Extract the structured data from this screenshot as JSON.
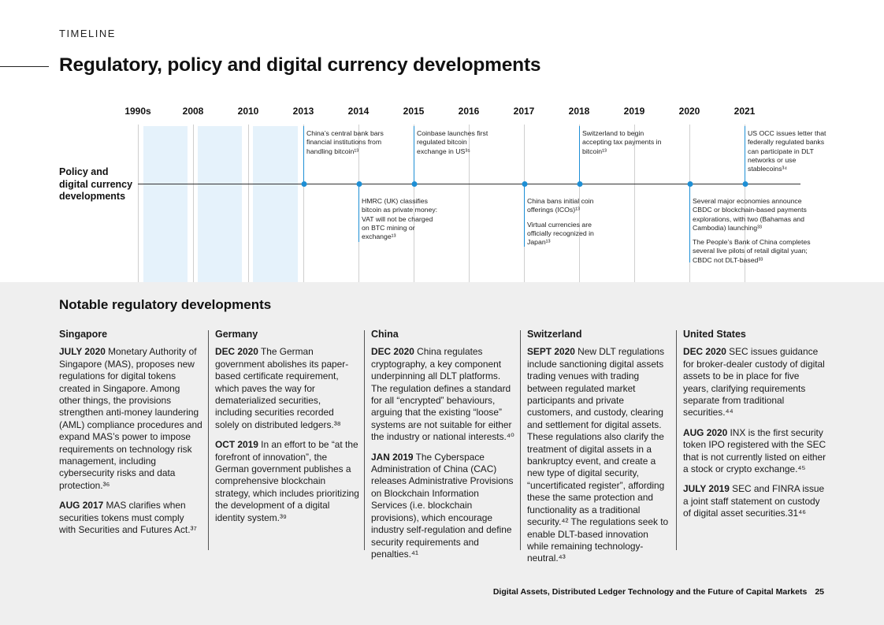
{
  "header": {
    "section_label": "TIMELINE",
    "title": "Regulatory, policy and digital currency developments"
  },
  "timeline": {
    "row_label": "Policy and digital currency developments",
    "years": [
      "1990s",
      "2008",
      "2010",
      "2013",
      "2014",
      "2015",
      "2016",
      "2017",
      "2018",
      "2019",
      "2020",
      "2021"
    ],
    "events_above": [
      {
        "year": "2013",
        "text": "China’s central bank bars financial institutions from handling bitcoin¹³"
      },
      {
        "year": "2015",
        "text": "Coinbase launches first regulated bitcoin exchange in US³⁵"
      },
      {
        "year": "2018",
        "text": "Switzerland to begin accepting tax payments in bitcoin¹³"
      },
      {
        "year": "2021",
        "text": "US OCC issues letter that federally regulated banks can participate in DLT networks or use stablecoins³⁴"
      }
    ],
    "events_below": [
      {
        "year": "2014",
        "text": "HMRC (UK) classifies bitcoin as private money: VAT will not be charged on BTC mining or exchange¹³"
      },
      {
        "year": "2017",
        "text": "China bans initial coin offerings (ICOs)¹³"
      },
      {
        "year": "2017",
        "text": "Virtual currencies are officially recognized in Japan¹³"
      },
      {
        "year": "2020",
        "text": "Several major economies announce CBDC or blockchain-based payments explorations, with two (Bahamas and Cambodia) launching³³"
      },
      {
        "year": "2020",
        "text": "The People’s Bank of China completes several live pilots of retail digital yuan; CBDC not DLT-based³³"
      }
    ]
  },
  "notable": {
    "heading": "Notable regulatory developments",
    "columns": [
      {
        "region": "Singapore",
        "entries": [
          {
            "date": "JULY 2020",
            "text": " Monetary Authority of Singapore (MAS), proposes new regulations for digital tokens created in Singapore. Among other things, the provisions strengthen anti-money laundering (AML) compliance procedures and expand MAS’s power to impose requirements on technology risk management, including cybersecurity risks and data protection.³⁶"
          },
          {
            "date": "AUG 2017",
            "text": " MAS clarifies when securities tokens must comply with Securities and Futures Act.³⁷"
          }
        ]
      },
      {
        "region": "Germany",
        "entries": [
          {
            "date": "DEC 2020",
            "text": " The German government abolishes its paper-based certificate requirement, which paves the way for dematerialized securities, including securities recorded solely on distributed ledgers.³⁸"
          },
          {
            "date": "OCT 2019",
            "text": " In an effort to be “at the forefront of innovation”, the German government publishes a comprehensive blockchain strategy, which includes prioritizing the development of a digital identity system.³⁹"
          }
        ]
      },
      {
        "region": "China",
        "entries": [
          {
            "date": "DEC 2020",
            "text": " China regulates cryptography, a key component underpinning all DLT platforms. The regulation defines a standard for all “encrypted” behaviours, arguing that the existing “loose” systems are not suitable for either the industry or national interests.⁴⁰"
          },
          {
            "date": "JAN 2019",
            "text": " The Cyberspace Administration of China (CAC) releases Administrative Provisions on Blockchain Information Services (i.e. blockchain provisions), which encourage industry self-regulation and define security requirements and penalties.⁴¹"
          }
        ]
      },
      {
        "region": "Switzerland",
        "entries": [
          {
            "date": "SEPT 2020",
            "text": " New DLT regulations include sanctioning digital assets trading venues with trading between regulated market participants and private customers, and custody, clearing and settlement for digital assets. These regulations also clarify the treatment of digital assets in a bankruptcy event, and create a new type of digital security, “uncertificated register”, affording these the same protection and functionality as a traditional security.⁴² The regulations seek to enable DLT-based innovation while remaining technology-neutral.⁴³"
          }
        ]
      },
      {
        "region": "United States",
        "entries": [
          {
            "date": "DEC 2020",
            "text": " SEC issues guidance for broker-dealer custody of digital assets to be in place for five years, clarifying requirements separate from traditional securities.⁴⁴"
          },
          {
            "date": "AUG 2020",
            "text": " INX is the first security token IPO registered with the SEC that is not currently listed on either a stock or crypto exchange.⁴⁵"
          },
          {
            "date": "JULY 2019",
            "text": " SEC and FINRA issue a joint staff statement on custody of digital asset securities.31⁴⁶"
          }
        ]
      }
    ]
  },
  "footer": {
    "publication": "Digital Assets, Distributed Ledger Technology and the Future of Capital Markets",
    "page_number": "25"
  },
  "colors": {
    "accent": "#1e8fd5",
    "shade": "#e5f2fb",
    "panel": "#efefef"
  }
}
